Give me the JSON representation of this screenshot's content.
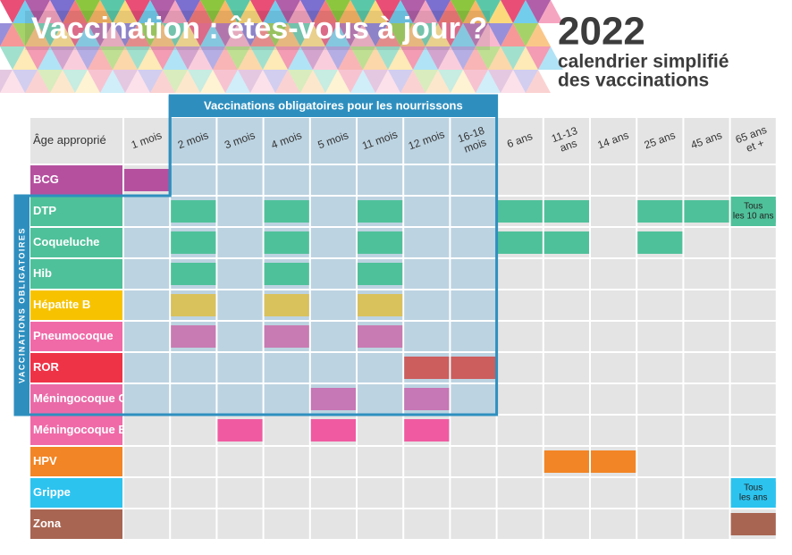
{
  "header": {
    "title": "Vaccination : êtes-vous à jour ?",
    "year": "2022",
    "subtitle_lines": [
      "calendrier simplifié",
      "des vaccinations"
    ]
  },
  "group_labels": {
    "infants": "Vaccinations obligatoires pour les nourrissons",
    "mandatory": "VACCINATIONS OBLIGATOIRES"
  },
  "table": {
    "corner": "Âge approprié",
    "columns": [
      [
        "1 mois"
      ],
      [
        "2 mois"
      ],
      [
        "3 mois"
      ],
      [
        "4 mois"
      ],
      [
        "5 mois"
      ],
      [
        "11 mois"
      ],
      [
        "12 mois"
      ],
      [
        "16-18",
        "mois"
      ],
      [
        "6 ans"
      ],
      [
        "11-13",
        "ans"
      ],
      [
        "14 ans"
      ],
      [
        "25 ans"
      ],
      [
        "45 ans"
      ],
      [
        "65 ans",
        "et +"
      ]
    ],
    "rows": [
      {
        "name": "BCG",
        "color": "#b5509f",
        "cell_color": "#b5509f",
        "marked": [
          0
        ]
      },
      {
        "name": "DTP",
        "color": "#4fc19a",
        "cell_color": "#4fc19a",
        "marked": [
          1,
          3,
          5,
          8,
          9,
          11,
          12,
          13
        ],
        "note": {
          "column": 13,
          "lines": [
            "Tous",
            "les 10 ans"
          ]
        }
      },
      {
        "name": "Coqueluche",
        "color": "#4fc19a",
        "cell_color": "#4fc19a",
        "marked": [
          1,
          3,
          5,
          8,
          9,
          11
        ]
      },
      {
        "name": "Hib",
        "color": "#4fc19a",
        "cell_color": "#4fc19a",
        "marked": [
          1,
          3,
          5
        ]
      },
      {
        "name": "Hépatite B",
        "color": "#f7c300",
        "cell_color": "#d9c15c",
        "marked": [
          1,
          3,
          5
        ]
      },
      {
        "name": "Pneumocoque",
        "color": "#f06aa8",
        "cell_color": "#c87bb2",
        "marked": [
          1,
          3,
          5
        ]
      },
      {
        "name": "ROR",
        "color": "#ef3347",
        "cell_color": "#cc5e5e",
        "marked": [
          6,
          7
        ]
      },
      {
        "name": "Méningocoque C",
        "color": "#ea6aa7",
        "cell_color": "#c677b5",
        "marked": [
          4,
          6
        ]
      },
      {
        "name": "Méningocoque B",
        "color": "#f06aa8",
        "cell_color": "#f05aa1",
        "marked": [
          2,
          4,
          6
        ]
      },
      {
        "name": "HPV",
        "color": "#f28525",
        "cell_color": "#f28525",
        "marked": [
          9,
          10
        ]
      },
      {
        "name": "Grippe",
        "color": "#2cc3ef",
        "cell_color": "#2cc3ef",
        "marked": [
          13
        ],
        "note": {
          "column": 13,
          "lines": [
            "Tous",
            "les ans"
          ]
        }
      },
      {
        "name": "Zona",
        "color": "#a86552",
        "cell_color": "#a86552",
        "marked": [
          13
        ]
      }
    ]
  }
}
